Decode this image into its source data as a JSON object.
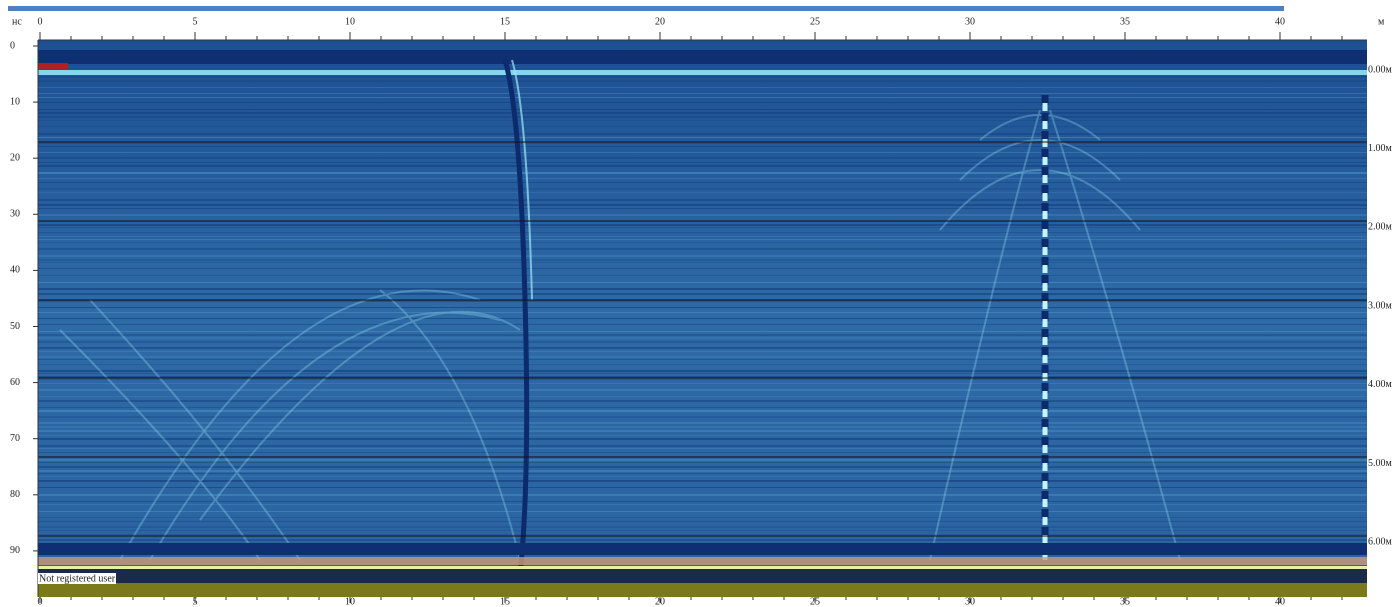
{
  "top_axis": {
    "unit_left": "нс",
    "ticks": [
      "0",
      "5",
      "10",
      "15",
      "20",
      "25",
      "30",
      "35",
      "40"
    ],
    "unit_right": "м"
  },
  "left_axis": {
    "ticks": [
      "0",
      "10",
      "20",
      "30",
      "40",
      "50",
      "60",
      "70",
      "80",
      "90"
    ]
  },
  "right_axis": {
    "labels": [
      "0.00м",
      "1.00м",
      "2.00м",
      "3.00м",
      "4.00м",
      "5.00м",
      "6.00м"
    ]
  },
  "bottom_axis": {
    "ticks": [
      "0",
      "5",
      "10",
      "15",
      "20",
      "25",
      "30",
      "35",
      "40"
    ]
  },
  "watermark": "Not registered user"
}
